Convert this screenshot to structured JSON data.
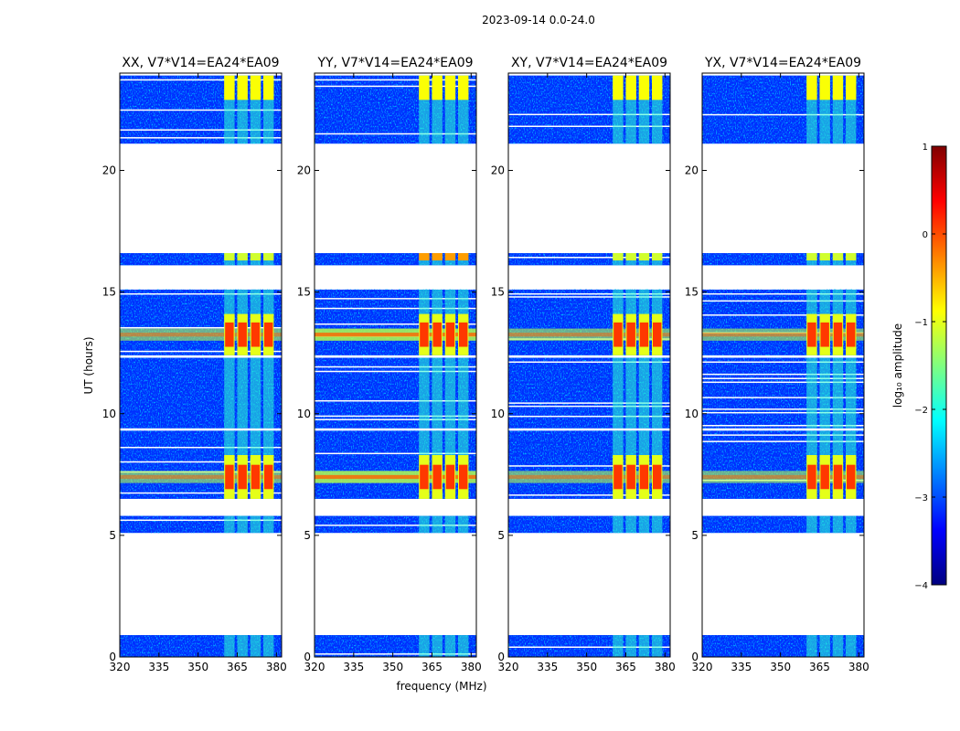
{
  "suptitle": "2023-09-14 0.0-24.0",
  "chart_data": {
    "type": "heatmap",
    "xlabel": "frequency (MHz)",
    "ylabel": "UT (hours)",
    "xlim": [
      320,
      382
    ],
    "ylim": [
      0,
      24
    ],
    "xticks": [
      320,
      335,
      350,
      365,
      380
    ],
    "yticks": [
      0,
      5,
      10,
      15,
      20
    ],
    "panels": [
      {
        "title": "XX, V7*V14=EA24*EA09",
        "pol": "XX"
      },
      {
        "title": "YY, V7*V14=EA24*EA09",
        "pol": "YY"
      },
      {
        "title": "XY, V7*V14=EA24*EA09",
        "pol": "XY"
      },
      {
        "title": "YX, V7*V14=EA24*EA09",
        "pol": "YX"
      }
    ],
    "data_time_ranges_hours": [
      [
        0.0,
        0.9
      ],
      [
        5.1,
        5.8
      ],
      [
        6.5,
        9.3
      ],
      [
        9.4,
        12.3
      ],
      [
        12.4,
        15.1
      ],
      [
        16.1,
        16.6
      ],
      [
        21.1,
        23.9
      ]
    ],
    "strong_rfi_channels_mhz": [
      [
        360,
        364
      ],
      [
        365,
        369
      ],
      [
        370,
        374
      ],
      [
        375,
        379
      ]
    ],
    "strong_rfi_time_ranges_hours": [
      [
        6.5,
        8.3
      ],
      [
        12.4,
        14.1
      ]
    ],
    "colorbar": {
      "label": "log₁₀ amplitude",
      "range": [
        -4,
        1
      ],
      "ticks": [
        -4,
        -3,
        -2,
        -1,
        0,
        1
      ],
      "tick_labels": [
        "−4",
        "−3",
        "−2",
        "−1",
        "0",
        "1"
      ],
      "colormap": "jet",
      "colors": [
        "#00007f",
        "#0000ff",
        "#007fff",
        "#00ffff",
        "#7fff7f",
        "#ffff00",
        "#ff7f00",
        "#ff0000",
        "#7f0000"
      ]
    }
  }
}
